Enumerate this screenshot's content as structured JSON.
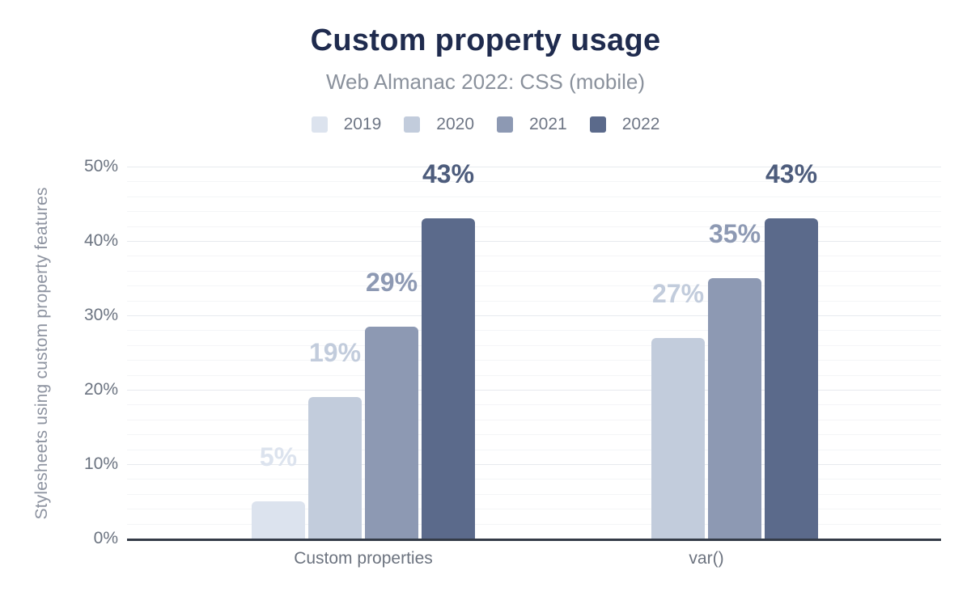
{
  "header": {
    "title": "Custom property usage",
    "subtitle": "Web Almanac 2022: CSS (mobile)"
  },
  "chart_data": {
    "type": "bar",
    "title": "Custom property usage",
    "subtitle": "Web Almanac 2022: CSS (mobile)",
    "categories": [
      "Custom properties",
      "var()"
    ],
    "series": [
      {
        "name": "2019",
        "color": "#dce3ee",
        "label_color": "#dce3ee",
        "values": [
          5,
          null
        ],
        "data_labels": [
          "5%",
          null
        ]
      },
      {
        "name": "2020",
        "color": "#c2ccdc",
        "label_color": "#c2ccdc",
        "values": [
          19,
          27
        ],
        "data_labels": [
          "19%",
          "27%"
        ]
      },
      {
        "name": "2021",
        "color": "#8d99b3",
        "label_color": "#8d99b3",
        "values": [
          28.5,
          35
        ],
        "data_labels": [
          "29%",
          "35%"
        ]
      },
      {
        "name": "2022",
        "color": "#5b6a8b",
        "label_color": "#4d5c7c",
        "values": [
          43,
          43
        ],
        "data_labels": [
          "43%",
          "43%"
        ]
      }
    ],
    "xlabel": "",
    "ylabel": "Stylesheets using custom property features",
    "ylim": [
      0,
      50
    ],
    "y_ticks": [
      {
        "value": 0,
        "label": "0%"
      },
      {
        "value": 10,
        "label": "10%"
      },
      {
        "value": 20,
        "label": "20%"
      },
      {
        "value": 30,
        "label": "30%"
      },
      {
        "value": 40,
        "label": "40%"
      },
      {
        "value": 50,
        "label": "50%"
      }
    ],
    "y_minor_step": 2,
    "y_major_step": 10,
    "grid": true,
    "legend_position": "top"
  },
  "colors": {
    "background": "#ffffff",
    "title_text": "#1f2b4e",
    "subtitle_text": "#8a919c",
    "legend_text": "#6e7685",
    "tick_text": "#6b7380",
    "category_text": "#6c737f",
    "ylabel_text": "#8d93a0",
    "axis_line": "#343b47",
    "grid_major": "#e7eaee",
    "grid_minor": "#f4f5f7"
  }
}
